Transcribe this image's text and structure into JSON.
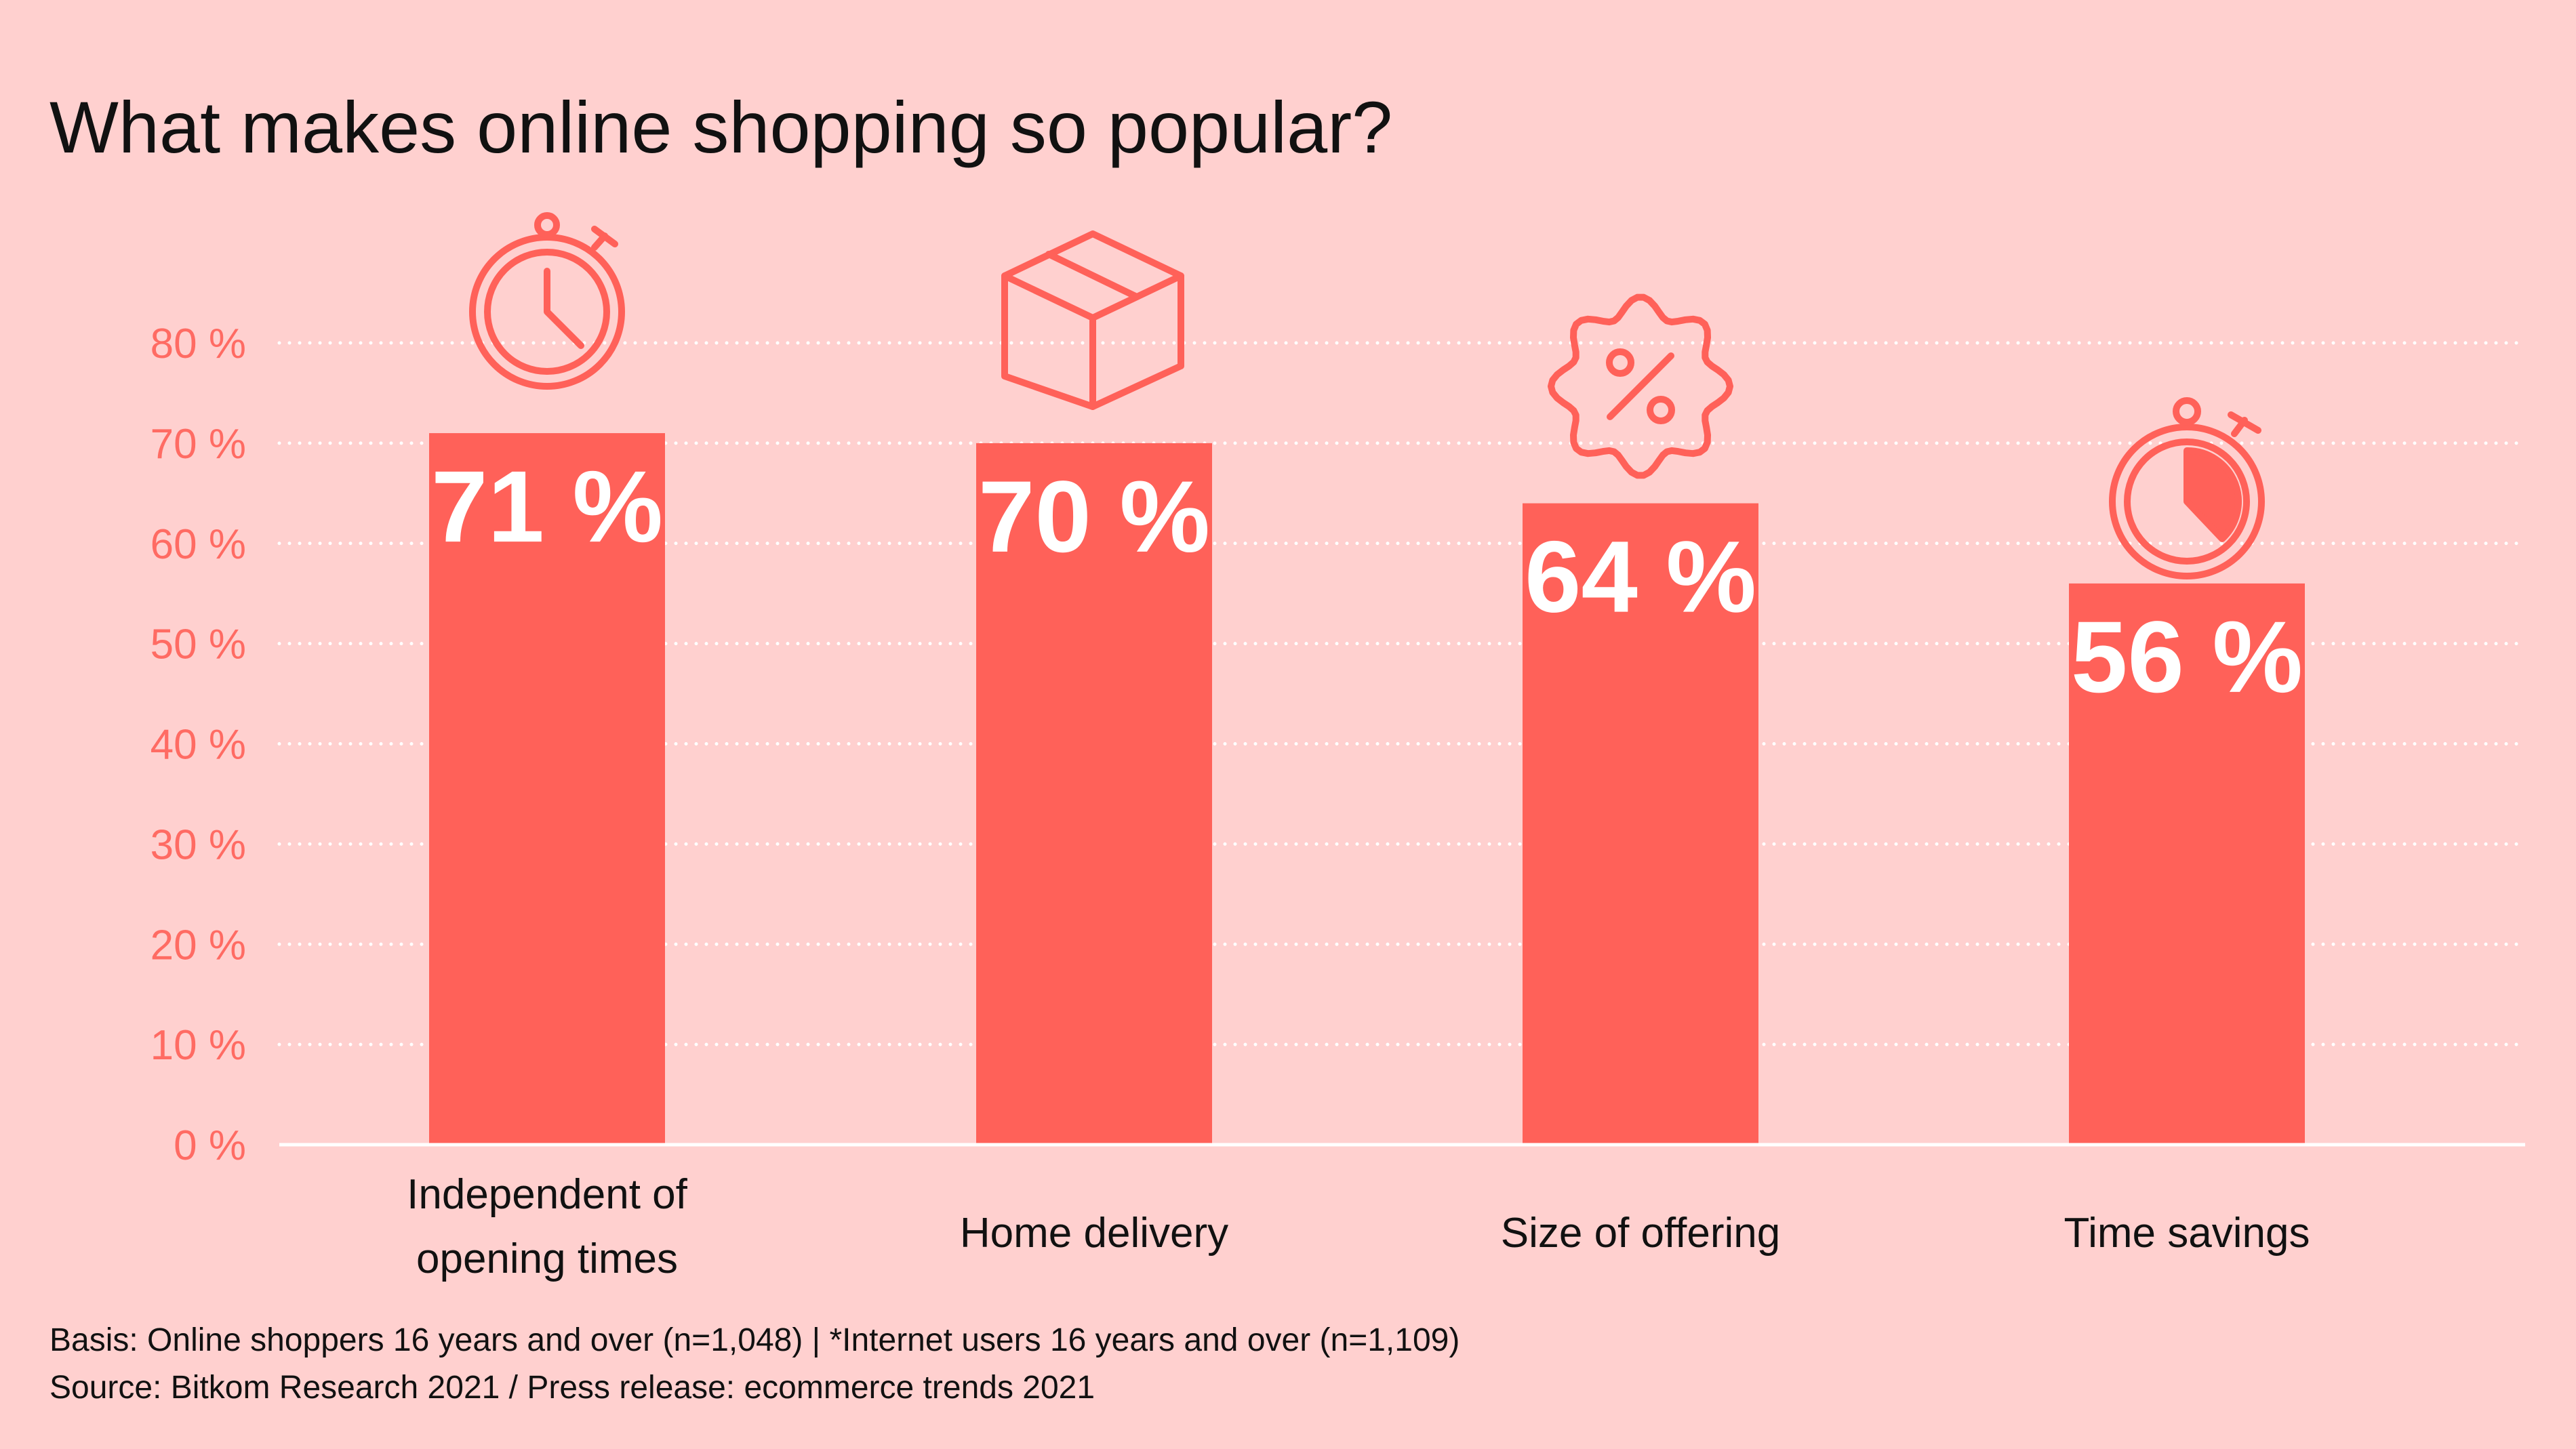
{
  "chart_data": {
    "type": "bar",
    "title": "What makes online shopping so popular?",
    "categories": [
      [
        "Independent of",
        "opening times"
      ],
      [
        "Home delivery"
      ],
      [
        "Size of offering"
      ],
      [
        "Time savings"
      ]
    ],
    "values": [
      71,
      70,
      64,
      56
    ],
    "value_labels": [
      "71 %",
      "70 %",
      "64 %",
      "56 %"
    ],
    "icons": [
      "stopwatch-clock-icon",
      "package-box-icon",
      "discount-badge-icon",
      "stopwatch-timer-icon"
    ],
    "ylim": [
      0,
      80
    ],
    "yticks": [
      0,
      10,
      20,
      30,
      40,
      50,
      60,
      70,
      80
    ],
    "ytick_labels": [
      "0 %",
      "10 %",
      "20 %",
      "30 %",
      "40 %",
      "50 %",
      "60 %",
      "70 %",
      "80 %"
    ],
    "grid": true,
    "xlabel": "",
    "ylabel": "",
    "colors": {
      "background": "#FFD0CF",
      "bar": "#FF6159",
      "tick": "#FF6B63",
      "grid": "#FFFFFF"
    }
  },
  "footnotes": {
    "basis": "Basis: Online shoppers 16 years and over (n=1,048) | *Internet users 16 years and over (n=1,109)",
    "source": "Source: Bitkom Research 2021 / Press release: ecommerce trends 2021"
  }
}
